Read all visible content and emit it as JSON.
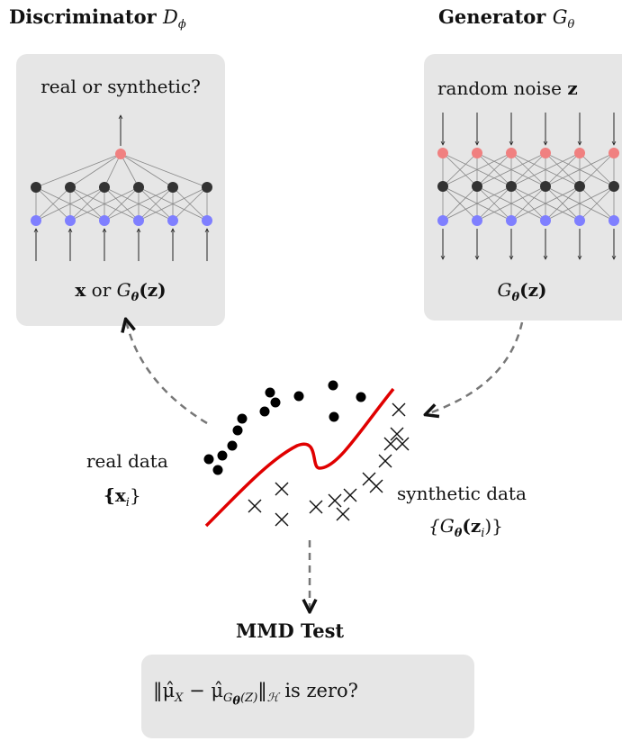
{
  "discriminator": {
    "title": "Discriminator",
    "symbol": "D",
    "symbol_sub": "ϕ",
    "question": "real or synthetic?",
    "input_x": "x",
    "input_or": " or ",
    "input_G": "G",
    "input_G_sub": "θ",
    "input_arg": "(z)"
  },
  "generator": {
    "title": "Generator",
    "symbol": "G",
    "symbol_sub": "θ",
    "noise_label": "random noise",
    "noise_var": "z",
    "output_G": "G",
    "output_G_sub": "θ",
    "output_arg": "(z)"
  },
  "data": {
    "real_label": "real data",
    "real_set": "{x",
    "real_set_sub": "i",
    "real_set_close": "}",
    "synthetic_label": "synthetic data",
    "synthetic_set_open": "{G",
    "synthetic_set_sub": "θ",
    "synthetic_set_arg": "(z",
    "synthetic_set_arg_sub": "i",
    "synthetic_set_close": ")}"
  },
  "mmd": {
    "title": "MMD Test",
    "norm_open": "‖μ̂",
    "mu_x_sub": "X",
    "minus": " − μ̂",
    "mu_g_sub": "G",
    "mu_g_subsub": "θ",
    "mu_g_arg": "(Z)",
    "norm_close": "‖",
    "space_sub": "ℋ",
    "question": " is zero?"
  },
  "colors": {
    "panel_bg": "#e6e6e6",
    "input_node": "#7f7fff",
    "hidden_node": "#333333",
    "output_node": "#f08080",
    "boundary": "#e00000",
    "dashed_arrow": "#777777"
  }
}
